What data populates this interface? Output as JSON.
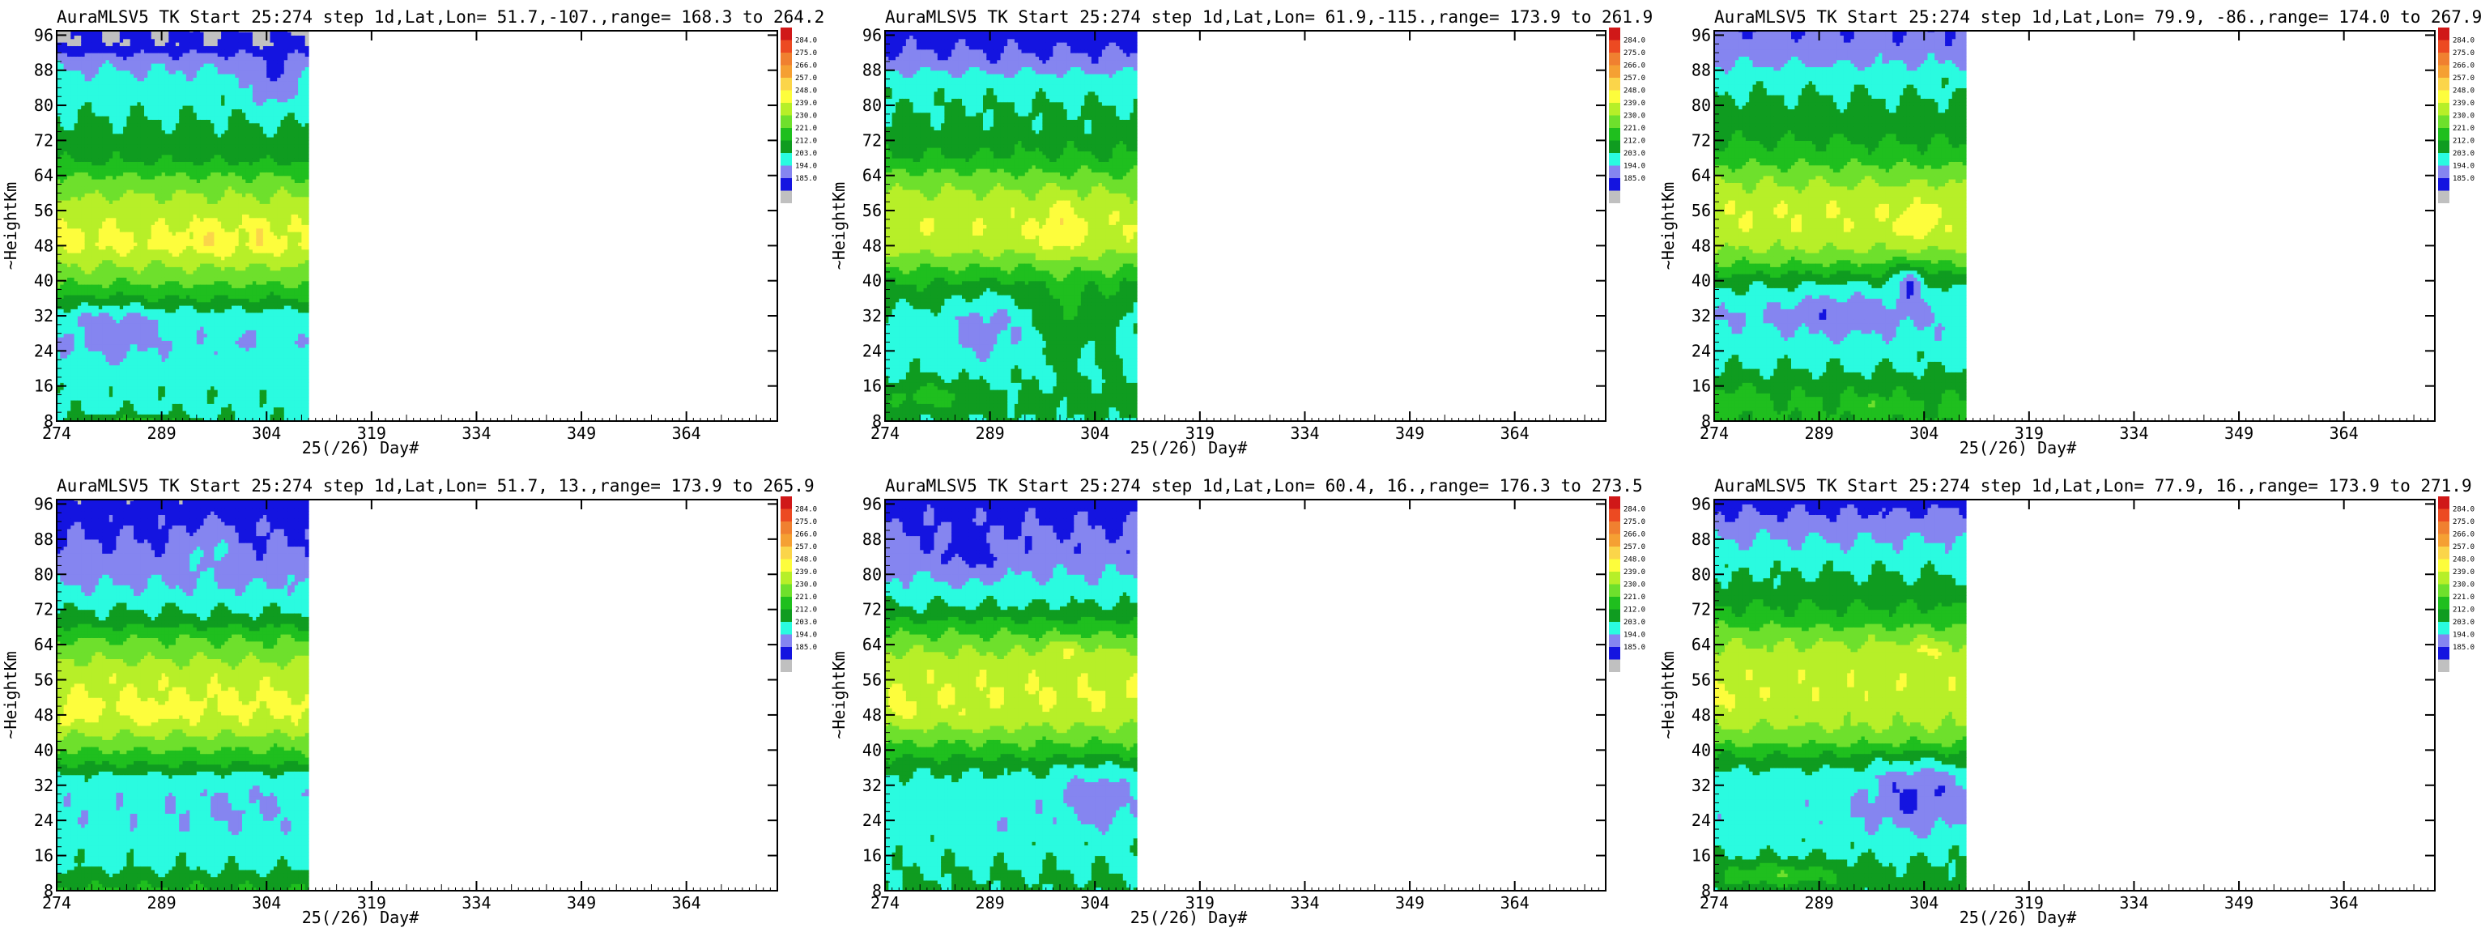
{
  "colorbar": {
    "levels": [
      "284.0",
      "275.0",
      "266.0",
      "257.0",
      "248.0",
      "239.0",
      "230.0",
      "221.0",
      "212.0",
      "203.0",
      "194.0",
      "185.0"
    ],
    "colors": [
      "#d01818",
      "#ec4a22",
      "#f08030",
      "#f5a033",
      "#fbd54a",
      "#fdfd3c",
      "#b7ef28",
      "#6ee02c",
      "#1fbf1e",
      "#0f9c20",
      "#2afbe0",
      "#8585f0",
      "#1414e0",
      "#c0c0c0"
    ]
  },
  "panels": [
    {
      "title": "AuraMLSV5 TK  Start 25:274 step 1d,Lat,Lon= 51.7,-107.,range= 168.3 to  264.2",
      "chart_data": {
        "type": "heatmap",
        "title": "AuraMLSV5 TK  Start 25:274 step 1d,Lat,Lon= 51.7,-107.,range= 168.3 to  264.2",
        "xlabel": "25(/26) Day#",
        "ylabel": "~HeightKm",
        "x_ticks": [
          "274",
          "289",
          "304",
          "319",
          "334",
          "349",
          "364"
        ],
        "y_ticks": [
          "8",
          "16",
          "24",
          "32",
          "40",
          "48",
          "56",
          "64",
          "72",
          "80",
          "88",
          "96"
        ],
        "xlim": [
          274,
          377
        ],
        "ylim": [
          8,
          97
        ],
        "data_x_end": 310,
        "profile": [
          [
            8,
            211
          ],
          [
            12,
            210
          ],
          [
            16,
            209
          ],
          [
            20,
            208
          ],
          [
            26,
            205
          ],
          [
            32,
            207
          ],
          [
            36,
            221
          ],
          [
            40,
            232
          ],
          [
            44,
            240
          ],
          [
            48,
            250
          ],
          [
            52,
            248
          ],
          [
            56,
            244
          ],
          [
            60,
            238
          ],
          [
            64,
            230
          ],
          [
            68,
            219
          ],
          [
            74,
            214
          ],
          [
            80,
            210
          ],
          [
            86,
            206
          ],
          [
            90,
            200
          ],
          [
            94,
            186
          ],
          [
            97,
            185
          ]
        ],
        "spots": [
          [
            296,
            49,
            2.5,
            4,
            7
          ],
          [
            303,
            50,
            1.2,
            4,
            8
          ],
          [
            282,
            28,
            6,
            7,
            -8
          ],
          [
            300,
            26,
            2,
            2,
            -5
          ],
          [
            305,
            85,
            3,
            6,
            -13
          ],
          [
            285,
            8,
            8,
            1.5,
            14
          ]
        ]
      }
    },
    {
      "title": "AuraMLSV5 TK  Start 25:274 step 1d,Lat,Lon= 61.9,-115.,range= 173.9 to  261.9",
      "chart_data": {
        "type": "heatmap",
        "title": "AuraMLSV5 TK  Start 25:274 step 1d,Lat,Lon= 61.9,-115.,range= 173.9 to  261.9",
        "xlabel": "25(/26) Day#",
        "ylabel": "~HeightKm",
        "x_ticks": [
          "274",
          "289",
          "304",
          "319",
          "334",
          "349",
          "364"
        ],
        "y_ticks": [
          "8",
          "16",
          "24",
          "32",
          "40",
          "48",
          "56",
          "64",
          "72",
          "80",
          "88",
          "96"
        ],
        "xlim": [
          274,
          377
        ],
        "ylim": [
          8,
          97
        ],
        "data_x_end": 310,
        "profile": [
          [
            8,
            212
          ],
          [
            12,
            215
          ],
          [
            16,
            212
          ],
          [
            20,
            210
          ],
          [
            26,
            208
          ],
          [
            32,
            210
          ],
          [
            36,
            215
          ],
          [
            40,
            222
          ],
          [
            44,
            233
          ],
          [
            48,
            244
          ],
          [
            52,
            247
          ],
          [
            56,
            245
          ],
          [
            60,
            240
          ],
          [
            64,
            232
          ],
          [
            68,
            222
          ],
          [
            74,
            215
          ],
          [
            80,
            212
          ],
          [
            86,
            207
          ],
          [
            90,
            197
          ],
          [
            94,
            192
          ],
          [
            97,
            190
          ]
        ],
        "spots": [
          [
            299,
            52,
            2.5,
            7,
            10
          ],
          [
            288,
            30,
            5,
            8,
            -10
          ],
          [
            300,
            30,
            3,
            10,
            12
          ],
          [
            306,
            28,
            1.5,
            12,
            8
          ],
          [
            280,
            14,
            6,
            3,
            12
          ]
        ]
      }
    },
    {
      "title": "AuraMLSV5 TK  Start 25:274 step 1d,Lat,Lon= 79.9, -86.,range= 174.0 to  267.9",
      "chart_data": {
        "type": "heatmap",
        "title": "AuraMLSV5 TK  Start 25:274 step 1d,Lat,Lon= 79.9, -86.,range= 174.0 to  267.9",
        "xlabel": "25(/26) Day#",
        "ylabel": "~HeightKm",
        "x_ticks": [
          "274",
          "289",
          "304",
          "319",
          "334",
          "349",
          "364"
        ],
        "y_ticks": [
          "8",
          "16",
          "24",
          "32",
          "40",
          "48",
          "56",
          "64",
          "72",
          "80",
          "88",
          "96"
        ],
        "xlim": [
          274,
          377
        ],
        "ylim": [
          8,
          97
        ],
        "data_x_end": 310,
        "profile": [
          [
            8,
            222
          ],
          [
            12,
            222
          ],
          [
            16,
            218
          ],
          [
            20,
            212
          ],
          [
            26,
            207
          ],
          [
            32,
            203
          ],
          [
            36,
            208
          ],
          [
            40,
            215
          ],
          [
            44,
            230
          ],
          [
            48,
            241
          ],
          [
            52,
            246
          ],
          [
            56,
            247
          ],
          [
            60,
            243
          ],
          [
            64,
            236
          ],
          [
            68,
            226
          ],
          [
            74,
            218
          ],
          [
            80,
            214
          ],
          [
            86,
            209
          ],
          [
            90,
            202
          ],
          [
            94,
            197
          ],
          [
            97,
            195
          ]
        ],
        "spots": [
          [
            292,
            33,
            8,
            6,
            -8
          ],
          [
            303,
            52,
            2,
            6,
            7
          ],
          [
            302,
            40,
            2,
            5,
            -18
          ],
          [
            297,
            12,
            1.5,
            2,
            10
          ],
          [
            277,
            14,
            3,
            3,
            5
          ]
        ]
      }
    },
    {
      "title": "AuraMLSV5 TK  Start 25:274 step 1d,Lat,Lon= 51.7,  13.,range= 173.9 to  265.9",
      "chart_data": {
        "type": "heatmap",
        "title": "AuraMLSV5 TK  Start 25:274 step 1d,Lat,Lon= 51.7,  13.,range= 173.9 to  265.9",
        "xlabel": "25(/26) Day#",
        "ylabel": "~HeightKm",
        "x_ticks": [
          "274",
          "289",
          "304",
          "319",
          "334",
          "349",
          "364"
        ],
        "y_ticks": [
          "8",
          "16",
          "24",
          "32",
          "40",
          "48",
          "56",
          "64",
          "72",
          "80",
          "88",
          "96"
        ],
        "xlim": [
          274,
          377
        ],
        "ylim": [
          8,
          97
        ],
        "data_x_end": 310,
        "profile": [
          [
            8,
            222
          ],
          [
            11,
            216
          ],
          [
            14,
            210
          ],
          [
            18,
            209
          ],
          [
            22,
            206
          ],
          [
            26,
            205
          ],
          [
            30,
            206
          ],
          [
            34,
            210
          ],
          [
            38,
            225
          ],
          [
            42,
            235
          ],
          [
            46,
            245
          ],
          [
            50,
            250
          ],
          [
            54,
            247
          ],
          [
            58,
            244
          ],
          [
            62,
            236
          ],
          [
            66,
            228
          ],
          [
            70,
            215
          ],
          [
            76,
            205
          ],
          [
            82,
            198
          ],
          [
            88,
            194
          ],
          [
            92,
            192
          ],
          [
            95,
            189
          ],
          [
            97,
            188
          ]
        ],
        "spots": [
          [
            288,
            48,
            3,
            2,
            6
          ],
          [
            276,
            47,
            1.5,
            2,
            6
          ],
          [
            300,
            28,
            8,
            6,
            -3
          ],
          [
            296,
            86,
            3,
            5,
            10
          ]
        ]
      }
    },
    {
      "title": "AuraMLSV5 TK  Start 25:274 step 1d,Lat,Lon= 60.4,  16.,range= 176.3 to  273.5",
      "chart_data": {
        "type": "heatmap",
        "title": "AuraMLSV5 TK  Start 25:274 step 1d,Lat,Lon= 60.4,  16.,range= 176.3 to  273.5",
        "xlabel": "25(/26) Day#",
        "ylabel": "~HeightKm",
        "x_ticks": [
          "274",
          "289",
          "304",
          "319",
          "334",
          "349",
          "364"
        ],
        "y_ticks": [
          "8",
          "16",
          "24",
          "32",
          "40",
          "48",
          "56",
          "64",
          "72",
          "80",
          "88",
          "96"
        ],
        "xlim": [
          274,
          377
        ],
        "ylim": [
          8,
          97
        ],
        "data_x_end": 310,
        "profile": [
          [
            8,
            214
          ],
          [
            12,
            212
          ],
          [
            16,
            210
          ],
          [
            20,
            209
          ],
          [
            26,
            206
          ],
          [
            32,
            208
          ],
          [
            36,
            214
          ],
          [
            40,
            226
          ],
          [
            44,
            236
          ],
          [
            48,
            245
          ],
          [
            52,
            248
          ],
          [
            56,
            246
          ],
          [
            60,
            244
          ],
          [
            64,
            236
          ],
          [
            68,
            226
          ],
          [
            72,
            214
          ],
          [
            78,
            205
          ],
          [
            84,
            198
          ],
          [
            90,
            194
          ],
          [
            94,
            192
          ],
          [
            97,
            190
          ]
        ],
        "spots": [
          [
            304,
            30,
            5,
            7,
            -10
          ],
          [
            300,
            63,
            3,
            2,
            8
          ],
          [
            276,
            48,
            1.5,
            3,
            4
          ],
          [
            288,
            46,
            2,
            2,
            3
          ],
          [
            286,
            84,
            4,
            5,
            -8
          ],
          [
            292,
            22,
            4,
            3,
            -3
          ]
        ]
      }
    },
    {
      "title": "AuraMLSV5 TK  Start 25:274 step 1d,Lat,Lon= 77.9,  16.,range= 173.9 to  271.9",
      "chart_data": {
        "type": "heatmap",
        "title": "AuraMLSV5 TK  Start 25:274 step 1d,Lat,Lon= 77.9,  16.,range= 173.9 to  271.9",
        "xlabel": "25(/26) Day#",
        "ylabel": "~HeightKm",
        "x_ticks": [
          "274",
          "289",
          "304",
          "319",
          "334",
          "349",
          "364"
        ],
        "y_ticks": [
          "8",
          "16",
          "24",
          "32",
          "40",
          "48",
          "56",
          "64",
          "72",
          "80",
          "88",
          "96"
        ],
        "xlim": [
          274,
          377
        ],
        "ylim": [
          8,
          97
        ],
        "data_x_end": 310,
        "profile": [
          [
            8,
            214
          ],
          [
            10,
            216
          ],
          [
            14,
            213
          ],
          [
            18,
            210
          ],
          [
            22,
            207
          ],
          [
            26,
            206
          ],
          [
            30,
            207
          ],
          [
            34,
            208
          ],
          [
            38,
            218
          ],
          [
            42,
            232
          ],
          [
            46,
            240
          ],
          [
            50,
            244
          ],
          [
            54,
            246
          ],
          [
            58,
            245
          ],
          [
            62,
            242
          ],
          [
            66,
            236
          ],
          [
            70,
            225
          ],
          [
            76,
            216
          ],
          [
            82,
            210
          ],
          [
            88,
            203
          ],
          [
            92,
            197
          ],
          [
            95,
            193
          ],
          [
            97,
            190
          ]
        ],
        "spots": [
          [
            303,
            30,
            7,
            8,
            -14
          ],
          [
            283,
            12,
            8,
            2.5,
            14
          ],
          [
            304,
            63,
            3,
            2,
            8
          ],
          [
            276,
            52,
            2,
            3,
            5
          ]
        ]
      }
    }
  ]
}
